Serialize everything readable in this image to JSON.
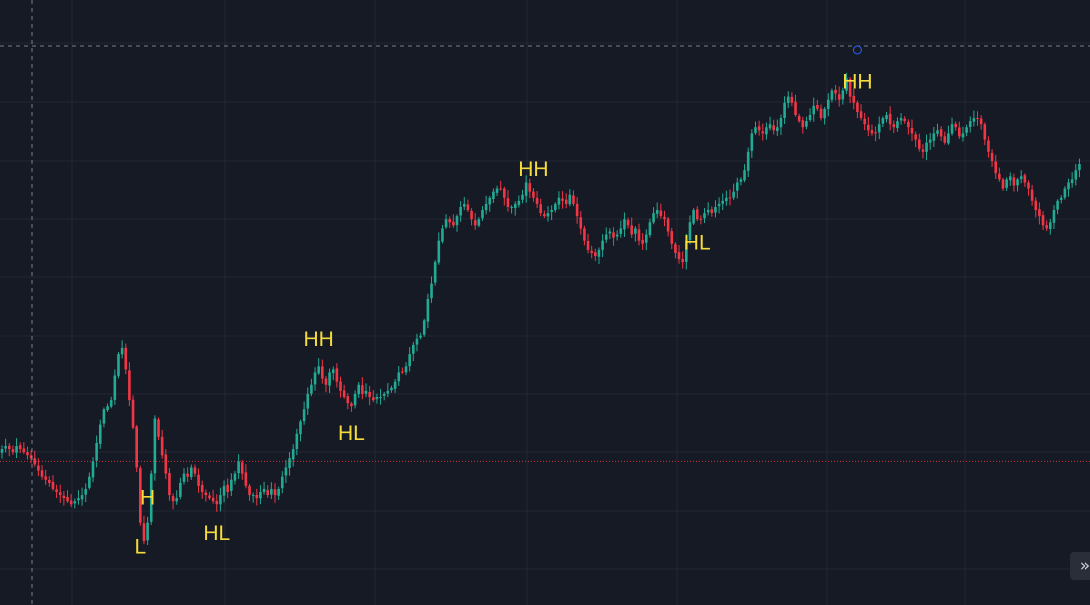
{
  "colors": {
    "background": "#161a25",
    "grid": "#222734",
    "up": "#22ab94",
    "down": "#f23645",
    "label": "#f5dc3b",
    "crosshair": "#9598a1",
    "price_line": "#f23645"
  },
  "controls": {
    "expand_label": "»"
  },
  "chart_data": {
    "type": "candlestick",
    "grid": true,
    "ylim": [
      0,
      100
    ],
    "hline_level": 28,
    "annotations": [
      {
        "text": "L",
        "kind": "low",
        "anchor": 38
      },
      {
        "text": "H",
        "kind": "high",
        "anchor": 40
      },
      {
        "text": "HL",
        "kind": "low",
        "anchor": 59
      },
      {
        "text": "HH",
        "kind": "high",
        "anchor": 87
      },
      {
        "text": "HL",
        "kind": "low",
        "anchor": 96
      },
      {
        "text": "HH",
        "kind": "high",
        "anchor": 146
      },
      {
        "text": "HL",
        "kind": "low",
        "anchor": 191
      },
      {
        "text": "HH",
        "kind": "high",
        "anchor": 235
      }
    ],
    "closes": [
      30.0,
      30.5,
      30.0,
      29.5,
      30.5,
      30.0,
      29.5,
      29.0,
      28.5,
      27.5,
      26.5,
      25.5,
      25.0,
      24.5,
      23.5,
      23.0,
      22.5,
      22.0,
      21.5,
      21.0,
      21.5,
      22.0,
      22.5,
      23.5,
      25.5,
      28.0,
      31.0,
      34.0,
      36.5,
      37.0,
      38.0,
      42.0,
      45.5,
      46.5,
      43.0,
      38.0,
      33.5,
      27.0,
      18.0,
      15.0,
      18.0,
      26.0,
      35.0,
      32.0,
      29.0,
      26.0,
      22.5,
      21.5,
      22.0,
      24.5,
      26.0,
      25.5,
      27.0,
      26.0,
      24.0,
      23.0,
      22.5,
      22.0,
      21.5,
      21.0,
      22.5,
      24.0,
      23.0,
      25.0,
      26.0,
      28.0,
      26.0,
      24.0,
      22.5,
      22.5,
      22.0,
      23.0,
      23.5,
      22.5,
      23.5,
      22.5,
      23.5,
      25.5,
      27.0,
      28.5,
      30.0,
      32.5,
      34.5,
      36.5,
      39.0,
      40.5,
      42.5,
      43.5,
      41.5,
      40.5,
      42.5,
      43.0,
      41.0,
      39.5,
      38.5,
      37.5,
      37.0,
      39.0,
      40.5,
      39.0,
      39.5,
      38.5,
      38.0,
      38.5,
      38.5,
      39.0,
      39.5,
      40.0,
      41.0,
      42.5,
      42.5,
      43.5,
      45.5,
      47.0,
      48.0,
      48.5,
      51.0,
      54.5,
      57.0,
      60.5,
      64.0,
      66.0,
      67.5,
      67.0,
      66.5,
      68.0,
      69.5,
      70.0,
      69.0,
      67.5,
      66.5,
      67.5,
      69.0,
      70.0,
      71.0,
      72.0,
      72.5,
      72.5,
      71.0,
      69.5,
      69.5,
      70.0,
      70.5,
      71.5,
      73.5,
      72.0,
      71.0,
      70.0,
      68.5,
      68.0,
      68.5,
      69.0,
      70.0,
      71.0,
      70.5,
      70.0,
      71.5,
      70.0,
      68.0,
      66.0,
      64.0,
      62.5,
      62.0,
      61.5,
      62.5,
      64.0,
      65.0,
      65.5,
      64.5,
      65.0,
      66.0,
      67.5,
      66.5,
      65.0,
      66.0,
      64.0,
      63.5,
      65.0,
      67.0,
      68.5,
      69.0,
      68.0,
      67.5,
      65.5,
      63.5,
      62.0,
      61.0,
      60.5,
      64.0,
      67.0,
      69.0,
      67.5,
      67.5,
      68.5,
      69.0,
      68.5,
      69.5,
      70.0,
      70.5,
      71.0,
      71.0,
      72.0,
      73.5,
      74.0,
      75.5,
      78.5,
      81.5,
      82.5,
      82.0,
      81.5,
      82.5,
      83.0,
      82.0,
      82.5,
      84.0,
      86.5,
      87.5,
      86.5,
      84.5,
      83.5,
      82.5,
      83.5,
      84.5,
      86.0,
      85.5,
      84.0,
      85.5,
      87.0,
      88.5,
      88.0,
      87.0,
      88.5,
      90.5,
      87.5,
      86.5,
      85.0,
      84.0,
      83.0,
      82.0,
      81.5,
      81.5,
      83.0,
      84.0,
      84.5,
      83.0,
      82.5,
      83.5,
      84.0,
      83.5,
      82.5,
      81.5,
      80.5,
      79.0,
      78.5,
      80.0,
      80.5,
      81.5,
      82.0,
      81.0,
      80.0,
      81.5,
      83.0,
      82.5,
      81.0,
      81.5,
      82.5,
      83.5,
      84.0,
      84.0,
      83.0,
      80.5,
      78.5,
      77.0,
      75.0,
      74.0,
      72.5,
      74.0,
      74.5,
      73.0,
      74.0,
      74.5,
      73.5,
      72.5,
      70.5,
      69.0,
      68.0,
      66.5,
      66.0,
      67.0,
      69.0,
      70.5,
      71.0,
      72.5,
      73.5,
      74.0,
      75.5,
      76.5
    ]
  }
}
